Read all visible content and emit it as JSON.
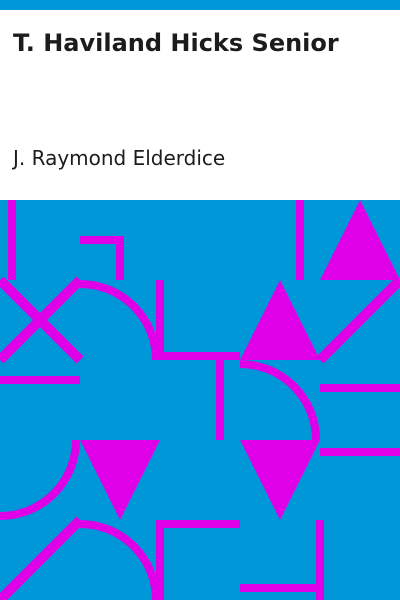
{
  "book": {
    "title": "T. Haviland Hicks Senior",
    "author": "J. Raymond Elderdice"
  },
  "cover_pattern": {
    "description_icon": "geometric-tile-pattern",
    "colors": {
      "background": "#0097d9",
      "shape": "#e000e8",
      "top_bar": "#0097d9"
    }
  }
}
